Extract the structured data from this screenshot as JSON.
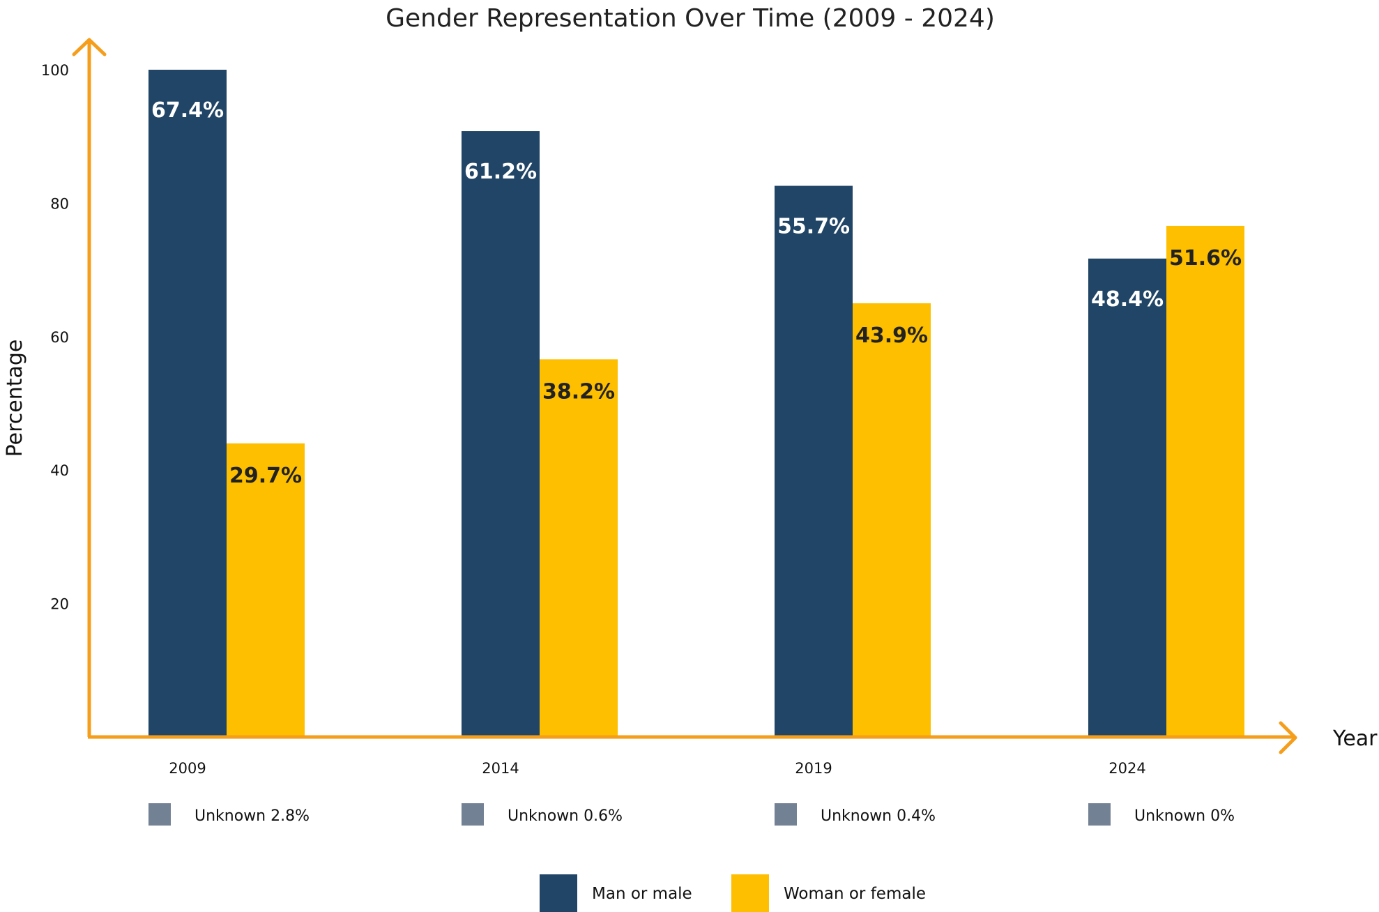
{
  "chart_data": {
    "type": "bar",
    "title": "Gender Representation Over Time (2009 - 2024)",
    "xlabel": "Year",
    "ylabel": "Percentage",
    "categories": [
      "2009",
      "2014",
      "2019",
      "2024"
    ],
    "y_ticks": [
      "20",
      "40",
      "60",
      "80",
      "100"
    ],
    "ylim": [
      0,
      100
    ],
    "series": [
      {
        "name": "Man or male",
        "color": "#214566",
        "label_color": "#ffffff",
        "bar_values": [
          100,
          90.8,
          82.6,
          71.7
        ],
        "labels": [
          "67.4%",
          "61.2%",
          "55.7%",
          "48.4%"
        ]
      },
      {
        "name": "Woman or female",
        "color": "#fdbf00",
        "label_color": "#222222",
        "bar_values": [
          44,
          56.6,
          65,
          76.6
        ],
        "labels": [
          "29.7%",
          "38.2%",
          "43.9%",
          "51.6%"
        ]
      }
    ],
    "unknown_notes": [
      "Unknown 2.8%",
      "Unknown 0.6%",
      "Unknown 0.4%",
      "Unknown 0%"
    ],
    "unknown_color": "#738194",
    "axis_color": "#f59e1b",
    "legend_placement": "bottom-center",
    "grid": false
  }
}
